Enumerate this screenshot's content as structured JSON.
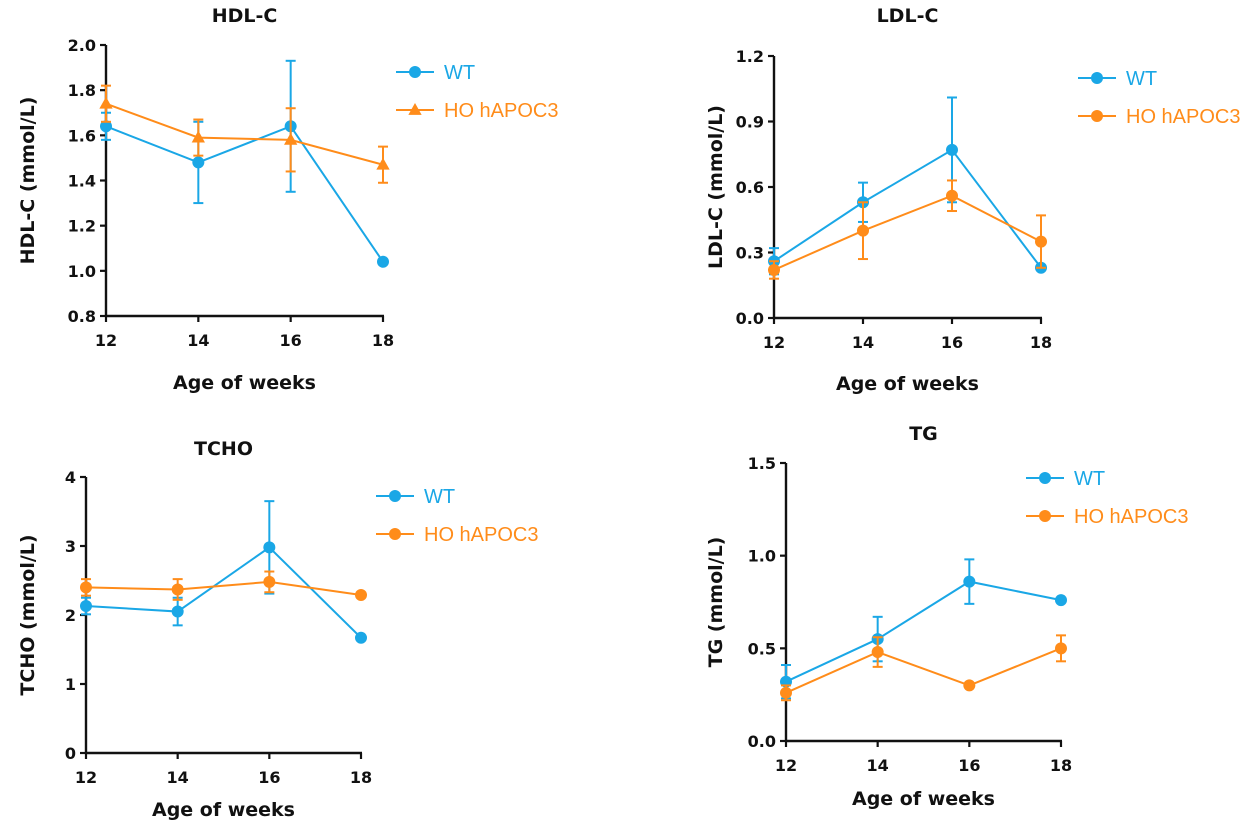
{
  "colors": {
    "wt": "#1aa7e6",
    "ho": "#ff8c1a",
    "axis": "#111111"
  },
  "chart_data": [
    {
      "type": "line",
      "title": "HDL-C",
      "xlabel": "Age of weeks",
      "ylabel": "HDL-C (mmol/L)",
      "x": [
        12,
        14,
        16,
        18
      ],
      "xticks": [
        "12",
        "14",
        "16",
        "18"
      ],
      "yticks": [
        "0.8",
        "1.0",
        "1.2",
        "1.4",
        "1.6",
        "1.8",
        "2.0"
      ],
      "ylim": [
        0.8,
        2.0
      ],
      "xlim": [
        12,
        18
      ],
      "legend": "top-right",
      "series": [
        {
          "name": "WT",
          "marker": "circle",
          "values": [
            1.64,
            1.48,
            1.64,
            1.04
          ],
          "errors": [
            0.06,
            0.18,
            0.29,
            0
          ]
        },
        {
          "name": "HO hAPOC3",
          "marker": "triangle",
          "values": [
            1.74,
            1.59,
            1.58,
            1.47
          ],
          "errors": [
            0.08,
            0.08,
            0.14,
            0.08
          ]
        }
      ]
    },
    {
      "type": "line",
      "title": "LDL-C",
      "xlabel": "Age of weeks",
      "ylabel": "LDL-C (mmol/L)",
      "x": [
        12,
        14,
        16,
        18
      ],
      "xticks": [
        "12",
        "14",
        "16",
        "18"
      ],
      "yticks": [
        "0.0",
        "0.3",
        "0.6",
        "0.9",
        "1.2"
      ],
      "ylim": [
        0.0,
        1.2
      ],
      "xlim": [
        12,
        18
      ],
      "legend": "top-right",
      "series": [
        {
          "name": "WT",
          "marker": "circle",
          "values": [
            0.26,
            0.53,
            0.77,
            0.23
          ],
          "errors": [
            0.06,
            0.09,
            0.24,
            0
          ]
        },
        {
          "name": "HO hAPOC3",
          "marker": "circle",
          "values": [
            0.22,
            0.4,
            0.56,
            0.35
          ],
          "errors": [
            0.04,
            0.13,
            0.07,
            0.12
          ]
        }
      ]
    },
    {
      "type": "line",
      "title": "TCHO",
      "xlabel": "Age of weeks",
      "ylabel": "TCHO (mmol/L)",
      "x": [
        12,
        14,
        16,
        18
      ],
      "xticks": [
        "12",
        "14",
        "16",
        "18"
      ],
      "yticks": [
        "0",
        "1",
        "2",
        "3",
        "4"
      ],
      "ylim": [
        0,
        4
      ],
      "xlim": [
        12,
        18
      ],
      "legend": "top-right",
      "series": [
        {
          "name": "WT",
          "marker": "circle",
          "values": [
            2.13,
            2.05,
            2.98,
            1.67
          ],
          "errors": [
            0.12,
            0.2,
            0.67,
            0
          ]
        },
        {
          "name": "HO hAPOC3",
          "marker": "circle",
          "values": [
            2.4,
            2.37,
            2.48,
            2.29
          ],
          "errors": [
            0.12,
            0.15,
            0.15,
            0
          ]
        }
      ]
    },
    {
      "type": "line",
      "title": "TG",
      "xlabel": "Age of weeks",
      "ylabel": "TG (mmol/L)",
      "x": [
        12,
        14,
        16,
        18
      ],
      "xticks": [
        "12",
        "14",
        "16",
        "18"
      ],
      "yticks": [
        "0.0",
        "0.5",
        "1.0",
        "1.5"
      ],
      "ylim": [
        0.0,
        1.5
      ],
      "xlim": [
        12,
        18
      ],
      "legend": "top-right",
      "series": [
        {
          "name": "WT",
          "marker": "circle",
          "values": [
            0.32,
            0.55,
            0.86,
            0.76
          ],
          "errors": [
            0.09,
            0.12,
            0.12,
            0
          ]
        },
        {
          "name": "HO hAPOC3",
          "marker": "circle",
          "values": [
            0.26,
            0.48,
            0.3,
            0.5
          ],
          "errors": [
            0.04,
            0.08,
            0,
            0.07
          ]
        }
      ]
    }
  ]
}
